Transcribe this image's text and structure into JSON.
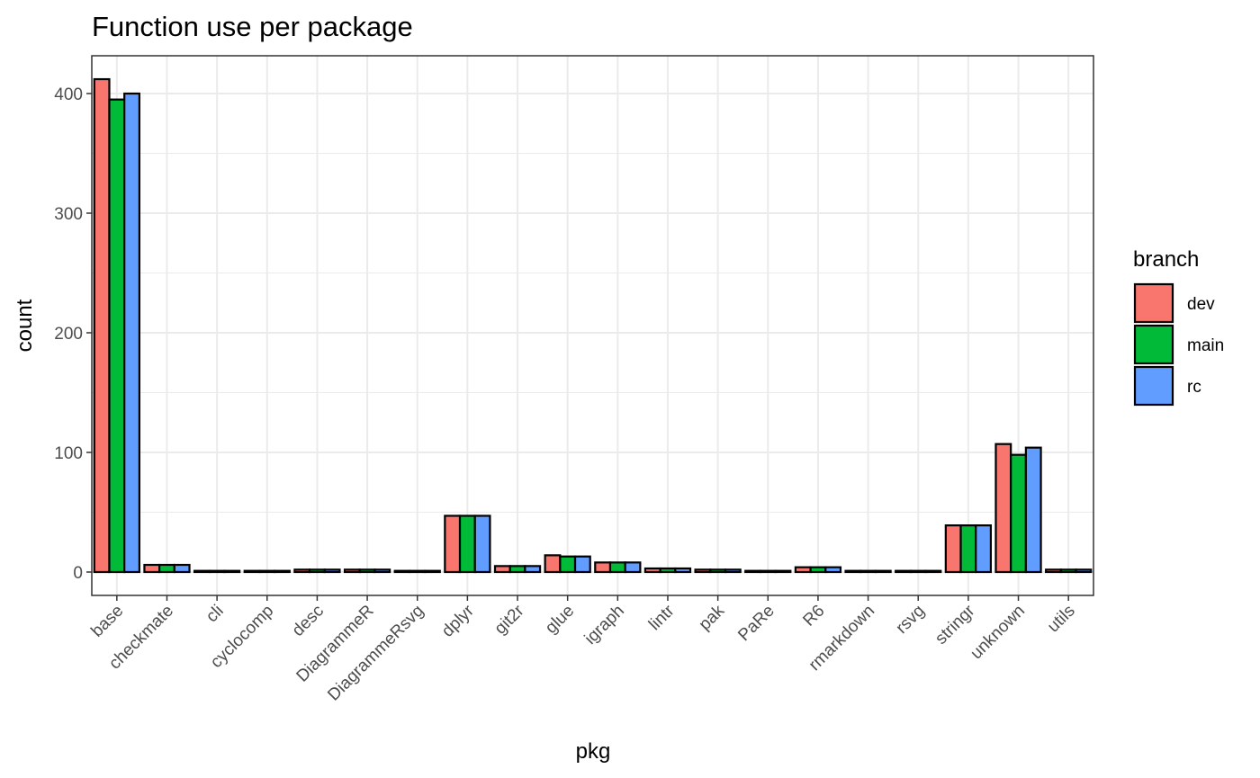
{
  "chart_data": {
    "type": "bar",
    "title": "Function use per package",
    "xlabel": "pkg",
    "ylabel": "count",
    "ylim": [
      -20,
      430
    ],
    "yticks": [
      0,
      100,
      200,
      300,
      400
    ],
    "grid": true,
    "legend": {
      "title": "branch",
      "position": "right"
    },
    "categories": [
      "base",
      "checkmate",
      "cli",
      "cyclocomp",
      "desc",
      "DiagrammeR",
      "DiagrammeRsvg",
      "dplyr",
      "git2r",
      "glue",
      "igraph",
      "lintr",
      "pak",
      "PaRe",
      "R6",
      "rmarkdown",
      "rsvg",
      "stringr",
      "unknown",
      "utils"
    ],
    "series": [
      {
        "name": "dev",
        "color": "#F8766D",
        "values": [
          412,
          6,
          1,
          1,
          2,
          2,
          1,
          47,
          5,
          14,
          8,
          3,
          2,
          1,
          4,
          1,
          1,
          39,
          107,
          2
        ]
      },
      {
        "name": "main",
        "color": "#00BA38",
        "values": [
          395,
          6,
          1,
          1,
          2,
          2,
          1,
          47,
          5,
          13,
          8,
          3,
          2,
          1,
          4,
          1,
          1,
          39,
          98,
          2
        ]
      },
      {
        "name": "rc",
        "color": "#619CFF",
        "values": [
          400,
          6,
          1,
          1,
          2,
          2,
          1,
          47,
          5,
          13,
          8,
          3,
          2,
          1,
          4,
          1,
          1,
          39,
          104,
          2
        ]
      }
    ]
  }
}
